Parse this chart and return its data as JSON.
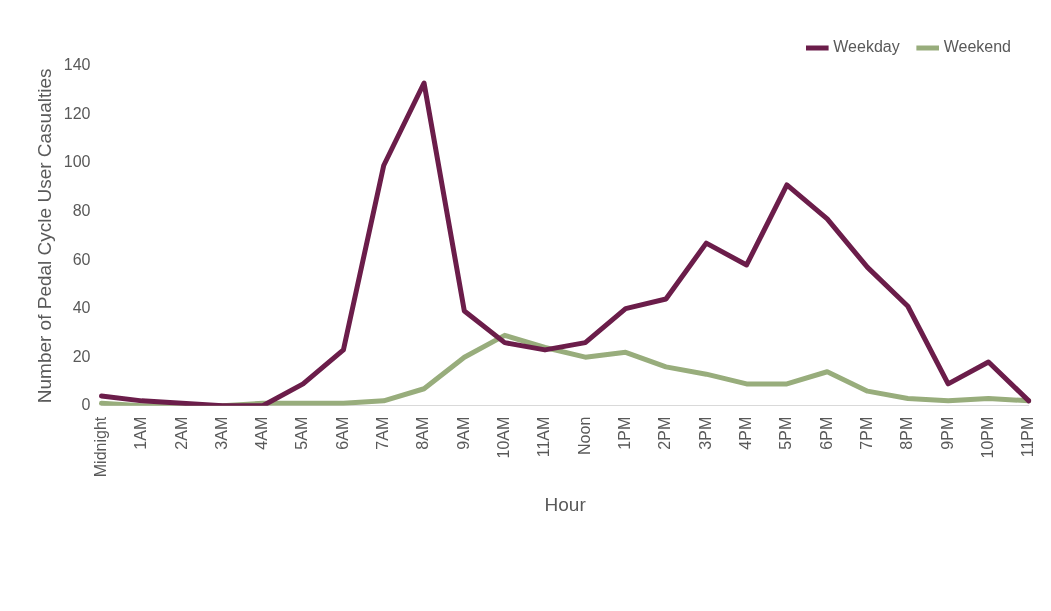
{
  "chart_data": {
    "type": "line",
    "xlabel": "Hour",
    "ylabel": "Number of Pedal Cycle User Casualties",
    "categories": [
      "Midnight",
      "1AM",
      "2AM",
      "3AM",
      "4AM",
      "5AM",
      "6AM",
      "7AM",
      "8AM",
      "9AM",
      "10AM",
      "11AM",
      "Noon",
      "1PM",
      "2PM",
      "3PM",
      "4PM",
      "5PM",
      "6PM",
      "7PM",
      "8PM",
      "9PM",
      "10PM",
      "11PM"
    ],
    "series": [
      {
        "name": "Weekday",
        "color": "#6b1d4a",
        "values": [
          4,
          2,
          1,
          0,
          0,
          9,
          23,
          99,
          133,
          39,
          26,
          23,
          26,
          40,
          44,
          67,
          58,
          91,
          77,
          57,
          41,
          9,
          18,
          2
        ]
      },
      {
        "name": "Weekend",
        "color": "#98ad7c",
        "values": [
          1,
          0,
          0,
          0,
          1,
          1,
          1,
          2,
          7,
          20,
          29,
          24,
          20,
          22,
          16,
          13,
          9,
          9,
          14,
          6,
          3,
          2,
          3,
          2
        ]
      }
    ],
    "ylim": [
      0,
      140
    ],
    "yticks": [
      0,
      20,
      40,
      60,
      80,
      100,
      120,
      140
    ],
    "grid": false,
    "legend": "top right",
    "marker": "none",
    "line_style": "solid"
  }
}
